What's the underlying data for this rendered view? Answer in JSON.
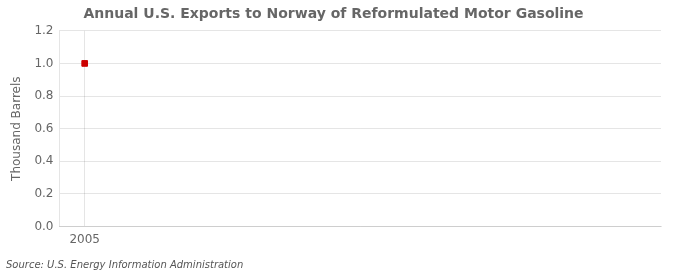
{
  "chart_data": {
    "type": "scatter",
    "title": "Annual U.S. Exports to Norway of Reformulated Motor Gasoline",
    "y_label": "Thousand Barrels",
    "annotations": [
      "Source: U.S. Energy Information Administration"
    ],
    "x": [
      2005
    ],
    "values": [
      1.0
    ],
    "color": "#cc0000",
    "marker": "square",
    "xlim": [
      2004.3,
      2021.0
    ],
    "xticks": [
      2005
    ],
    "ylim": [
      0.0,
      1.2
    ],
    "yticks": [
      {
        "value": 0.0,
        "label": "0.0"
      },
      0.2,
      0.4,
      0.6,
      0.8,
      {
        "value": 1.0,
        "label": "1.0"
      },
      1.2
    ],
    "grid": true,
    "legend": false
  }
}
